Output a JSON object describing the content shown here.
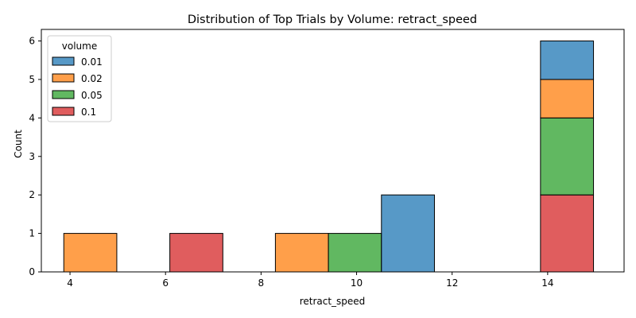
{
  "chart_data": {
    "type": "bar",
    "stacked": true,
    "title": "Distribution of Top Trials by Volume: retract_speed",
    "xlabel": "retract_speed",
    "ylabel": "Count",
    "xlim": [
      3.4,
      15.6
    ],
    "ylim": [
      0,
      6.3
    ],
    "xticks": [
      4,
      6,
      8,
      10,
      12,
      14
    ],
    "yticks": [
      0,
      1,
      2,
      3,
      4,
      5,
      6
    ],
    "grid": false,
    "legend": {
      "title": "volume",
      "placement": "top-left"
    },
    "bin_edges": [
      3.87,
      4.98,
      6.09,
      7.2,
      8.3,
      9.41,
      10.52,
      11.63,
      12.74,
      13.85,
      14.96
    ],
    "series": [
      {
        "name": "0.01",
        "color": "#1f77b4",
        "values": [
          0,
          0,
          0,
          0,
          0,
          0,
          2,
          0,
          0,
          1
        ]
      },
      {
        "name": "0.02",
        "color": "#ff7f0e",
        "values": [
          1,
          0,
          0,
          0,
          1,
          0,
          0,
          0,
          0,
          1
        ]
      },
      {
        "name": "0.05",
        "color": "#2ca02c",
        "values": [
          0,
          0,
          0,
          0,
          0,
          1,
          0,
          0,
          0,
          2
        ]
      },
      {
        "name": "0.1",
        "color": "#d62728",
        "values": [
          0,
          0,
          1,
          0,
          0,
          0,
          0,
          0,
          0,
          2
        ]
      }
    ],
    "stack_order_bottom_to_top": [
      "0.1",
      "0.05",
      "0.02",
      "0.01"
    ]
  }
}
